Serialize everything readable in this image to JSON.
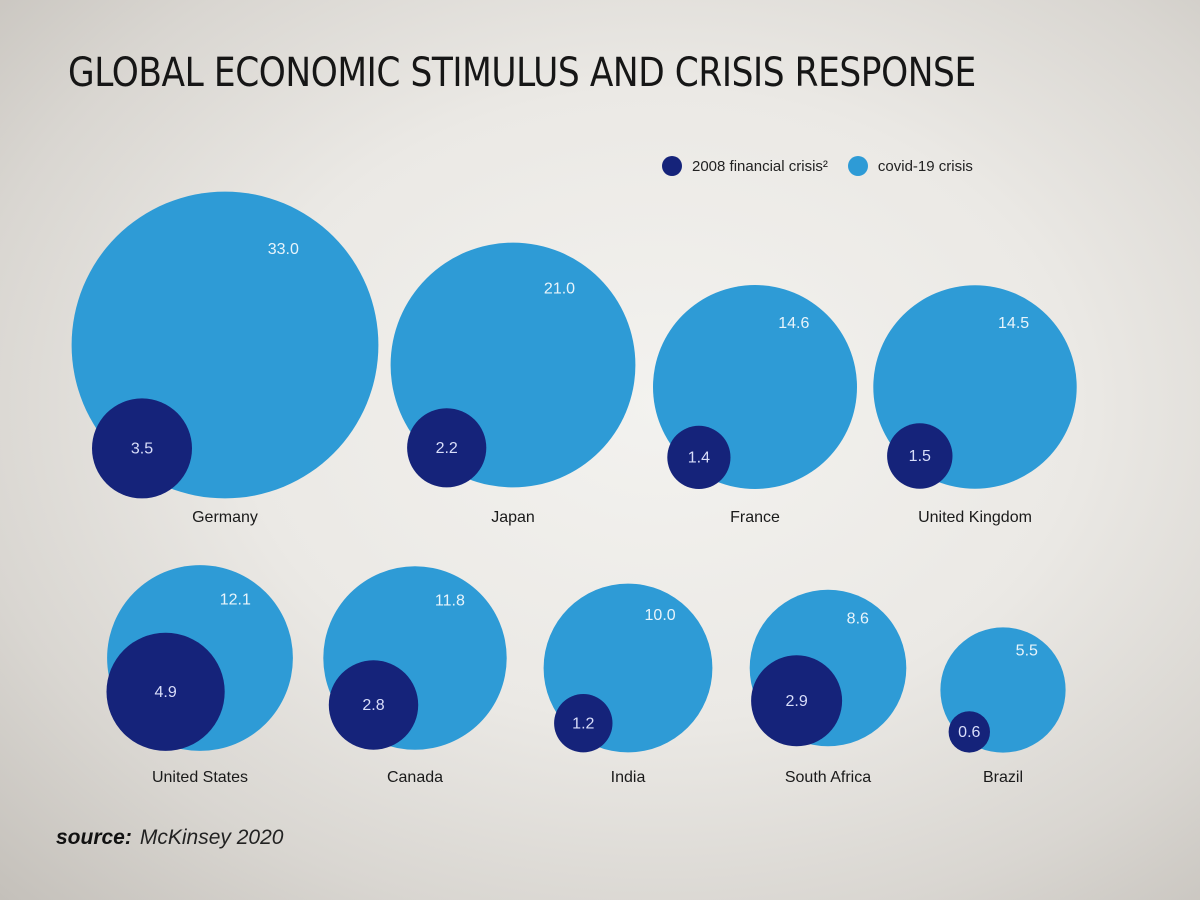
{
  "title": "GLOBAL ECONOMIC STIMULUS AND CRISIS RESPONSE",
  "legend": {
    "series_a": "2008 financial crisis²",
    "series_b": "covid-19 crisis"
  },
  "colors": {
    "crisis_2008": "#15237a",
    "covid_19": "#2e9bd6"
  },
  "source": {
    "label": "source:",
    "text": "McKinsey 2020"
  },
  "chart_data": {
    "type": "bubble",
    "title": "GLOBAL ECONOMIC STIMULUS AND CRISIS RESPONSE",
    "series": [
      {
        "name": "2008 financial crisis²",
        "values": [
          3.5,
          2.2,
          1.4,
          1.5,
          4.9,
          2.8,
          1.2,
          2.9,
          0.6
        ]
      },
      {
        "name": "covid-19 crisis",
        "values": [
          33.0,
          21.0,
          14.6,
          14.5,
          12.1,
          11.8,
          10.0,
          8.6,
          5.5
        ]
      }
    ],
    "categories": [
      "Germany",
      "Japan",
      "France",
      "United Kingdom",
      "United States",
      "Canada",
      "India",
      "South Africa",
      "Brazil"
    ],
    "points": [
      {
        "country": "Germany",
        "crisis_2008": "3.5",
        "covid_19": "33.0"
      },
      {
        "country": "Japan",
        "crisis_2008": "2.2",
        "covid_19": "21.0"
      },
      {
        "country": "France",
        "crisis_2008": "1.4",
        "covid_19": "14.6"
      },
      {
        "country": "United Kingdom",
        "crisis_2008": "1.5",
        "covid_19": "14.5"
      },
      {
        "country": "United States",
        "crisis_2008": "4.9",
        "covid_19": "12.1"
      },
      {
        "country": "Canada",
        "crisis_2008": "2.8",
        "covid_19": "11.8"
      },
      {
        "country": "India",
        "crisis_2008": "1.2",
        "covid_19": "10.0"
      },
      {
        "country": "South Africa",
        "crisis_2008": "2.9",
        "covid_19": "8.6"
      },
      {
        "country": "Brazil",
        "crisis_2008": "0.6",
        "covid_19": "5.5"
      }
    ]
  }
}
